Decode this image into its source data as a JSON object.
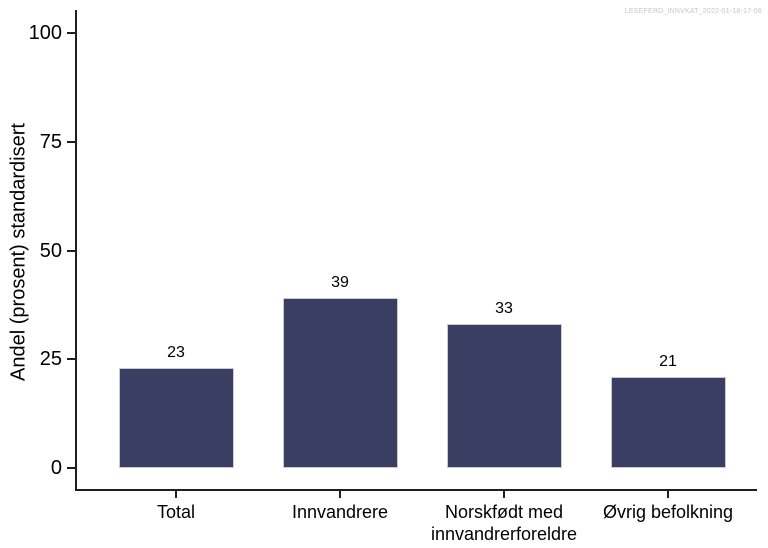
{
  "watermark": "LESEFERD_INNVKAT_2022-01-18-17-06",
  "chart_data": {
    "type": "bar",
    "title": "",
    "categories": [
      "Total",
      "Innvandrere",
      "Norskfødt med innvandrerforeldre",
      "Øvrig befolkning"
    ],
    "values": [
      23,
      39,
      33,
      21
    ],
    "bar_labels": [
      "23",
      "39",
      "33",
      "21"
    ],
    "xlabel": "",
    "ylabel": "Andel (prosent) standardisert",
    "ylim": [
      0,
      100
    ],
    "yticks": [
      0,
      25,
      50,
      75,
      100
    ],
    "grid": false,
    "legend": "none",
    "bar_color": "#3a3e62",
    "bar_border_color": "#c9c9d2",
    "axis_color": "#1f1f1f",
    "watermark_color": "#c6c6c6"
  }
}
